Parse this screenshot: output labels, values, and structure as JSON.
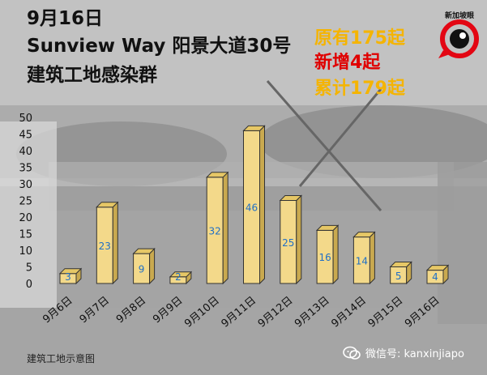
{
  "title": {
    "line1": "9月16日",
    "line2": "Sunview Way 阳景大道30号",
    "line3": "建筑工地感染群"
  },
  "stats": {
    "existing": "原有175起",
    "new": "新增4起",
    "total": "累计179起",
    "existing_color": "#f5b400",
    "new_color": "#e00000",
    "total_color": "#f5b400"
  },
  "logo": {
    "text": "新加坡眼",
    "color": "#e30613"
  },
  "caption": "建筑工地示意图",
  "wechat": {
    "text": "微信号: kanxinjiapo",
    "icon": "wechat-icon"
  },
  "chart_data": {
    "type": "bar",
    "categories": [
      "9月6日",
      "9月7日",
      "9月8日",
      "9月9日",
      "9月10日",
      "9月11日",
      "9月12日",
      "9月13日",
      "9月14日",
      "9月15日",
      "9月16日"
    ],
    "values": [
      3,
      23,
      9,
      2,
      32,
      46,
      25,
      16,
      14,
      5,
      4
    ],
    "yticks": [
      0,
      5,
      10,
      15,
      20,
      25,
      30,
      35,
      40,
      45,
      50
    ],
    "ylim": [
      0,
      50
    ],
    "bar_color": "#f3d98a",
    "label_color": "#1f6fc6",
    "grid": false,
    "style": "3d-box"
  }
}
